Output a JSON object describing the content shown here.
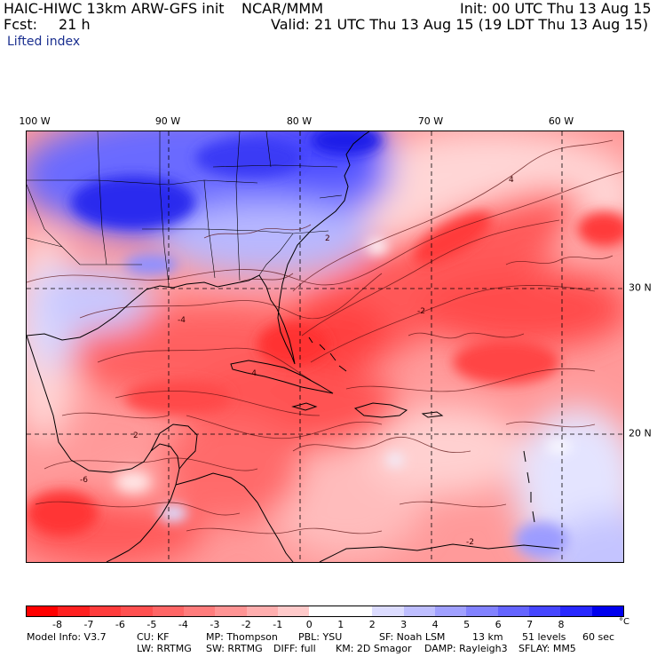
{
  "header": {
    "model_title": "HAIC-HIWC 13km ARW-GFS init",
    "institution": "NCAR/MMM",
    "init_label": "Init: 00 UTC Thu 13 Aug 15",
    "forecast_label": "Fcst:",
    "forecast_hours": "21 h",
    "valid_label": "Valid: 21 UTC Thu 13 Aug 15 (19 LDT Thu 13 Aug 15)",
    "field_name": "Lifted index"
  },
  "map": {
    "longitude_labels": [
      "100 W",
      "90 W",
      "80 W",
      "70 W",
      "60 W"
    ],
    "latitude_labels": [
      "30 N",
      "20 N"
    ],
    "contour_labels": [
      "4",
      "2",
      "-2",
      "-4",
      "-6",
      "2",
      "-4",
      "-2"
    ]
  },
  "colorbar": {
    "ticks": [
      "-8",
      "-7",
      "-6",
      "-5",
      "-4",
      "-3",
      "-2",
      "-1",
      "0",
      "1",
      "2",
      "3",
      "4",
      "5",
      "6",
      "7",
      "8"
    ],
    "unit": "°C",
    "colors": [
      "#ff0000",
      "#ff2020",
      "#ff3c3c",
      "#ff5050",
      "#ff6666",
      "#ff7c7c",
      "#ff9494",
      "#ffaeae",
      "#ffcaca",
      "#ffffff",
      "#ffffff",
      "#dcdcff",
      "#bebeff",
      "#a0a0ff",
      "#8282ff",
      "#6464ff",
      "#4646ff",
      "#2828ff",
      "#0000ee"
    ]
  },
  "model_info": {
    "line1": [
      "Model Info: V3.7",
      "CU: KF",
      "MP: Thompson",
      "PBL: YSU",
      "SF: Noah LSM",
      "13 km",
      "51 levels",
      "60 sec"
    ],
    "line2": [
      "LW: RRTMG",
      "SW: RRTMG",
      "DIFF: full",
      "KM: 2D Smagor",
      "DAMP: Rayleigh3",
      "SFLAY: MM5"
    ]
  }
}
